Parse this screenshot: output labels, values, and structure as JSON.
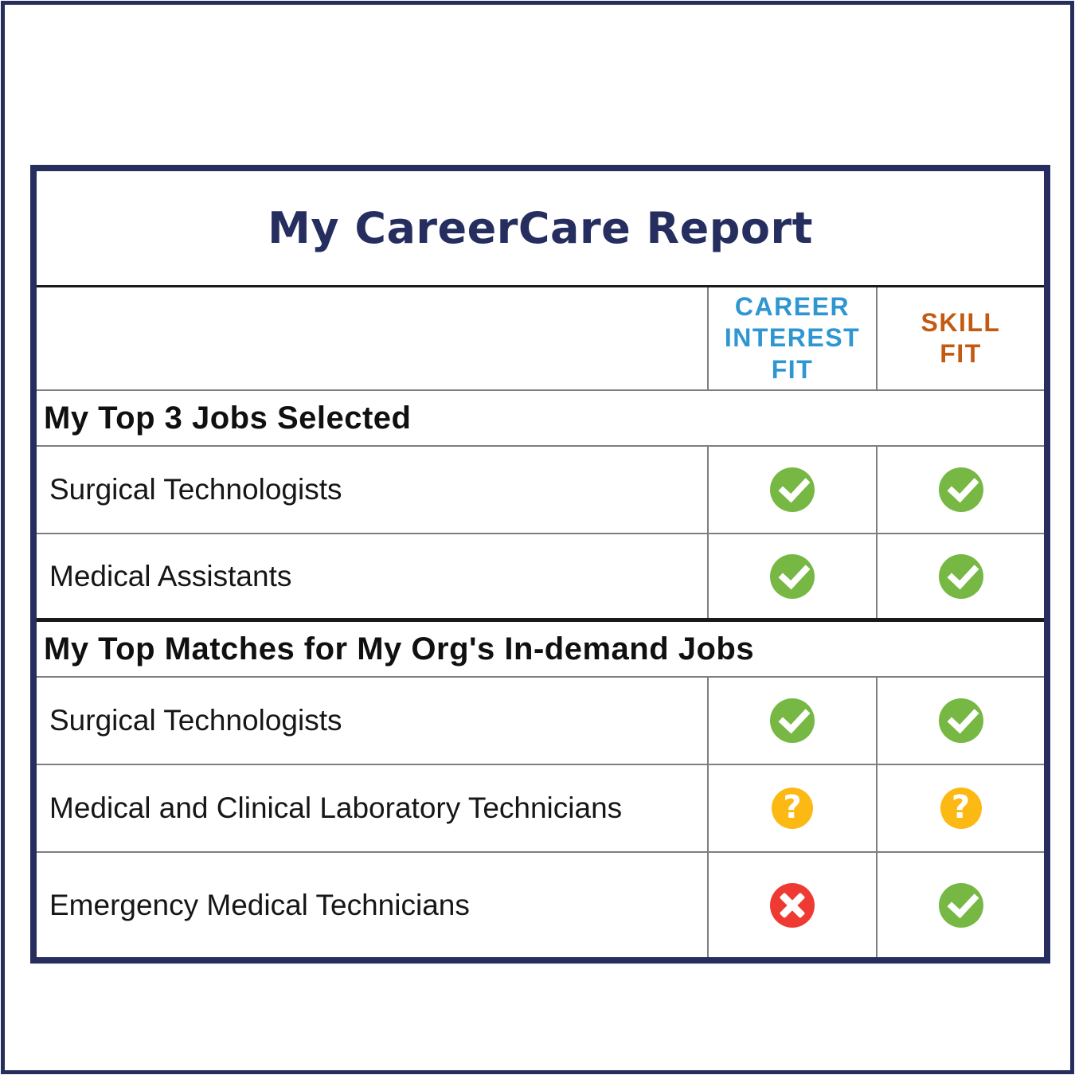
{
  "page": {
    "title": "My CareerCare Report"
  },
  "table": {
    "columns": [
      "CAREER\nINTEREST\nFIT",
      "SKILL\nFIT"
    ],
    "sections": [
      {
        "header": "My Top 3 Jobs Selected",
        "rows": [
          {
            "label": "Surgical Technologists",
            "career_interest_fit": "check",
            "skill_fit": "check"
          },
          {
            "label": "Medical Assistants",
            "career_interest_fit": "check",
            "skill_fit": "check"
          }
        ]
      },
      {
        "header": "My Top Matches for My Org's In-demand Jobs",
        "rows": [
          {
            "label": "Surgical Technologists",
            "career_interest_fit": "check",
            "skill_fit": "check"
          },
          {
            "label": "Medical and Clinical Laboratory Technicians",
            "career_interest_fit": "question",
            "skill_fit": "question"
          },
          {
            "label": "Emergency Medical Technicians",
            "career_interest_fit": "cross",
            "skill_fit": "check"
          }
        ]
      }
    ]
  },
  "colors": {
    "navy": "#252E5E",
    "career-header-blue": "#2E96D1",
    "skill-header-orange": "#C45A11",
    "check-green": "#76B843",
    "question-yellow": "#FCB813",
    "cross-red": "#EF3A33",
    "grid-gray": "#7F7F7F",
    "rule-black": "#1A1A1A"
  }
}
